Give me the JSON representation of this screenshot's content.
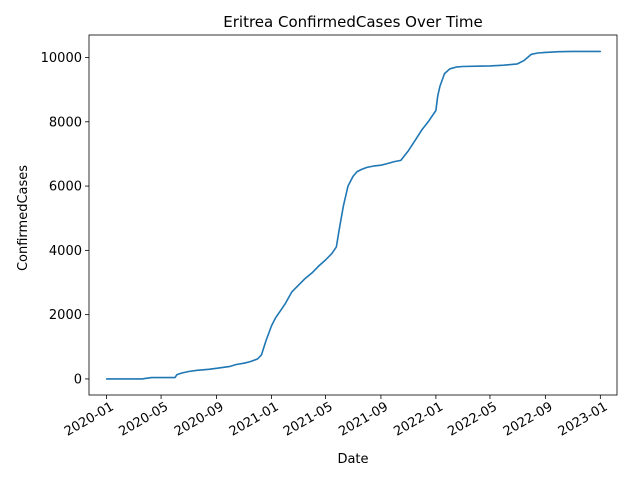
{
  "chart_data": {
    "type": "line",
    "title": "Eritrea  ConfirmedCases Over Time",
    "xlabel": "Date",
    "ylabel": "ConfirmedCases",
    "grid": false,
    "legend": "none",
    "line_color": "#1f77b4",
    "xlim": [
      "2019-11-23",
      "2023-02-07"
    ],
    "ylim": [
      -500,
      10700
    ],
    "x_ticks": [
      "2020-01",
      "2020-05",
      "2020-09",
      "2021-01",
      "2021-05",
      "2021-09",
      "2022-01",
      "2022-05",
      "2022-09",
      "2023-01"
    ],
    "x_tick_dates": [
      "2020-01-01",
      "2020-05-01",
      "2020-09-01",
      "2021-01-01",
      "2021-05-01",
      "2021-09-01",
      "2022-01-01",
      "2022-05-01",
      "2022-09-01",
      "2023-01-01"
    ],
    "y_ticks": [
      0,
      2000,
      4000,
      6000,
      8000,
      10000
    ],
    "series": [
      {
        "x": [
          "2020-01-01",
          "2020-03-20",
          "2020-03-25",
          "2020-04-10",
          "2020-04-30",
          "2020-06-01",
          "2020-06-05",
          "2020-06-15",
          "2020-07-01",
          "2020-07-20",
          "2020-08-15",
          "2020-09-01",
          "2020-09-15",
          "2020-10-01",
          "2020-10-15",
          "2020-11-01",
          "2020-11-15",
          "2020-12-01",
          "2020-12-10",
          "2020-12-20",
          "2021-01-01",
          "2021-01-10",
          "2021-01-20",
          "2021-02-01",
          "2021-02-15",
          "2021-03-01",
          "2021-03-15",
          "2021-04-01",
          "2021-04-15",
          "2021-05-01",
          "2021-05-15",
          "2021-05-25",
          "2021-06-01",
          "2021-06-10",
          "2021-06-20",
          "2021-07-01",
          "2021-07-10",
          "2021-07-20",
          "2021-08-01",
          "2021-08-15",
          "2021-09-01",
          "2021-09-15",
          "2021-10-01",
          "2021-10-15",
          "2021-11-01",
          "2021-11-15",
          "2021-12-01",
          "2021-12-15",
          "2022-01-01",
          "2022-01-05",
          "2022-01-10",
          "2022-01-20",
          "2022-02-01",
          "2022-02-15",
          "2022-03-01",
          "2022-04-01",
          "2022-05-01",
          "2022-06-01",
          "2022-07-01",
          "2022-07-15",
          "2022-08-01",
          "2022-08-15",
          "2022-09-01",
          "2022-10-01",
          "2022-11-01",
          "2022-12-01",
          "2023-01-01"
        ],
        "y": [
          0,
          0,
          10,
          40,
          40,
          40,
          130,
          180,
          230,
          270,
          300,
          330,
          360,
          390,
          450,
          490,
          540,
          620,
          750,
          1200,
          1650,
          1900,
          2100,
          2350,
          2700,
          2900,
          3100,
          3300,
          3500,
          3700,
          3900,
          4100,
          4700,
          5400,
          6000,
          6300,
          6450,
          6520,
          6580,
          6620,
          6650,
          6700,
          6760,
          6800,
          7100,
          7400,
          7750,
          8000,
          8350,
          8800,
          9100,
          9500,
          9650,
          9700,
          9720,
          9730,
          9740,
          9760,
          9800,
          9900,
          10100,
          10140,
          10160,
          10180,
          10190,
          10190,
          10190
        ]
      }
    ]
  }
}
